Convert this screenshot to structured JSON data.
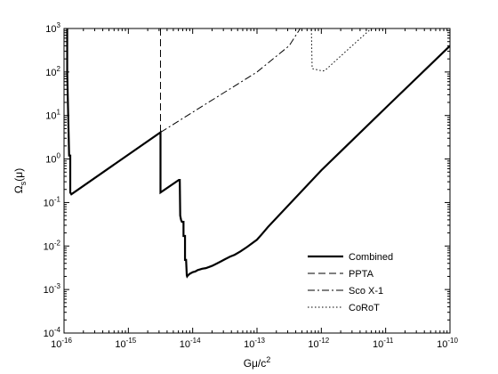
{
  "chart_data": {
    "type": "line",
    "title": "",
    "xlabel": "Gμ/c",
    "xlabel_sup": "2",
    "ylabel": "Ω",
    "ylabel_sub": "s",
    "ylabel_tail": "(μ)",
    "x_scale": "log",
    "y_scale": "log",
    "xlim": [
      1e-16,
      1e-10
    ],
    "ylim": [
      0.0001,
      1000.0
    ],
    "grid": false,
    "legend_position": "bottom-right",
    "x_ticks": [
      {
        "value": 1e-16,
        "mant": "10",
        "exp": "-16"
      },
      {
        "value": 1e-15,
        "mant": "10",
        "exp": "-15"
      },
      {
        "value": 1e-14,
        "mant": "10",
        "exp": "-14"
      },
      {
        "value": 1e-13,
        "mant": "10",
        "exp": "-13"
      },
      {
        "value": 1e-12,
        "mant": "10",
        "exp": "-12"
      },
      {
        "value": 1e-11,
        "mant": "10",
        "exp": "-11"
      },
      {
        "value": 1e-10,
        "mant": "10",
        "exp": "-10"
      }
    ],
    "y_ticks": [
      {
        "value": 0.0001,
        "mant": "10",
        "exp": "-4"
      },
      {
        "value": 0.001,
        "mant": "10",
        "exp": "-3"
      },
      {
        "value": 0.01,
        "mant": "10",
        "exp": "-2"
      },
      {
        "value": 0.1,
        "mant": "10",
        "exp": "-1"
      },
      {
        "value": 1.0,
        "mant": "10",
        "exp": "0"
      },
      {
        "value": 10.0,
        "mant": "10",
        "exp": "1"
      },
      {
        "value": 100.0,
        "mant": "10",
        "exp": "2"
      },
      {
        "value": 1000.0,
        "mant": "10",
        "exp": "3"
      }
    ],
    "series": [
      {
        "name": "Combined",
        "style": "solid",
        "width": 2.2,
        "x": [
          1.12e-16,
          1.12e-16,
          1.2e-16,
          1.25e-16,
          1.25e-16,
          1.3e-16,
          3.16e-15,
          3.16e-15,
          6.1e-15,
          6.3e-15,
          6.4e-15,
          6.6e-15,
          6.8e-15,
          7.2e-15,
          7.2e-15,
          7.6e-15,
          7.6e-15,
          7.9e-15,
          8.1e-15,
          8.2e-15,
          8.4e-15,
          9e-15,
          1e-14,
          1.1e-14,
          1.2e-14,
          1.3e-14,
          1.4e-14,
          1.6e-14,
          1.8e-14,
          2e-14,
          2.4e-14,
          2.8e-14,
          3.2e-14,
          3.8e-14,
          4.5e-14,
          5.5e-14,
          7e-14,
          1e-13,
          1.2e-13,
          1.5e-13,
          1e-12,
          1e-11,
          1e-10
        ],
        "y": [
          1000,
          100,
          1.2,
          1.2,
          0.17,
          0.155,
          4.1,
          0.17,
          0.33,
          0.33,
          0.05,
          0.04,
          0.036,
          0.036,
          0.017,
          0.017,
          0.0048,
          0.0048,
          0.0021,
          0.002,
          0.0021,
          0.0023,
          0.0025,
          0.0026,
          0.0028,
          0.0029,
          0.003,
          0.0031,
          0.0033,
          0.0035,
          0.004,
          0.0045,
          0.005,
          0.0057,
          0.0063,
          0.0075,
          0.0095,
          0.014,
          0.019,
          0.028,
          0.55,
          15,
          400
        ]
      },
      {
        "name": "PPTA",
        "style": "dashed",
        "width": 1,
        "x": [
          3.16e-15,
          3.16e-15
        ],
        "y": [
          1000,
          4.1
        ]
      },
      {
        "name": "Sco X-1",
        "style": "dashdot",
        "width": 1,
        "x": [
          3.16e-15,
          1e-13,
          3.16e-13,
          4.7e-13
        ],
        "y": [
          4.1,
          100,
          400,
          1000
        ]
      },
      {
        "name": "CoRoT",
        "style": "dotted",
        "width": 1,
        "x": [
          5e-13,
          7e-13,
          7.2e-13,
          1.05e-12,
          1.15e-12,
          3e-12,
          6e-12
        ],
        "y": [
          1000,
          1000,
          120,
          105,
          110,
          400,
          1000
        ]
      }
    ]
  }
}
